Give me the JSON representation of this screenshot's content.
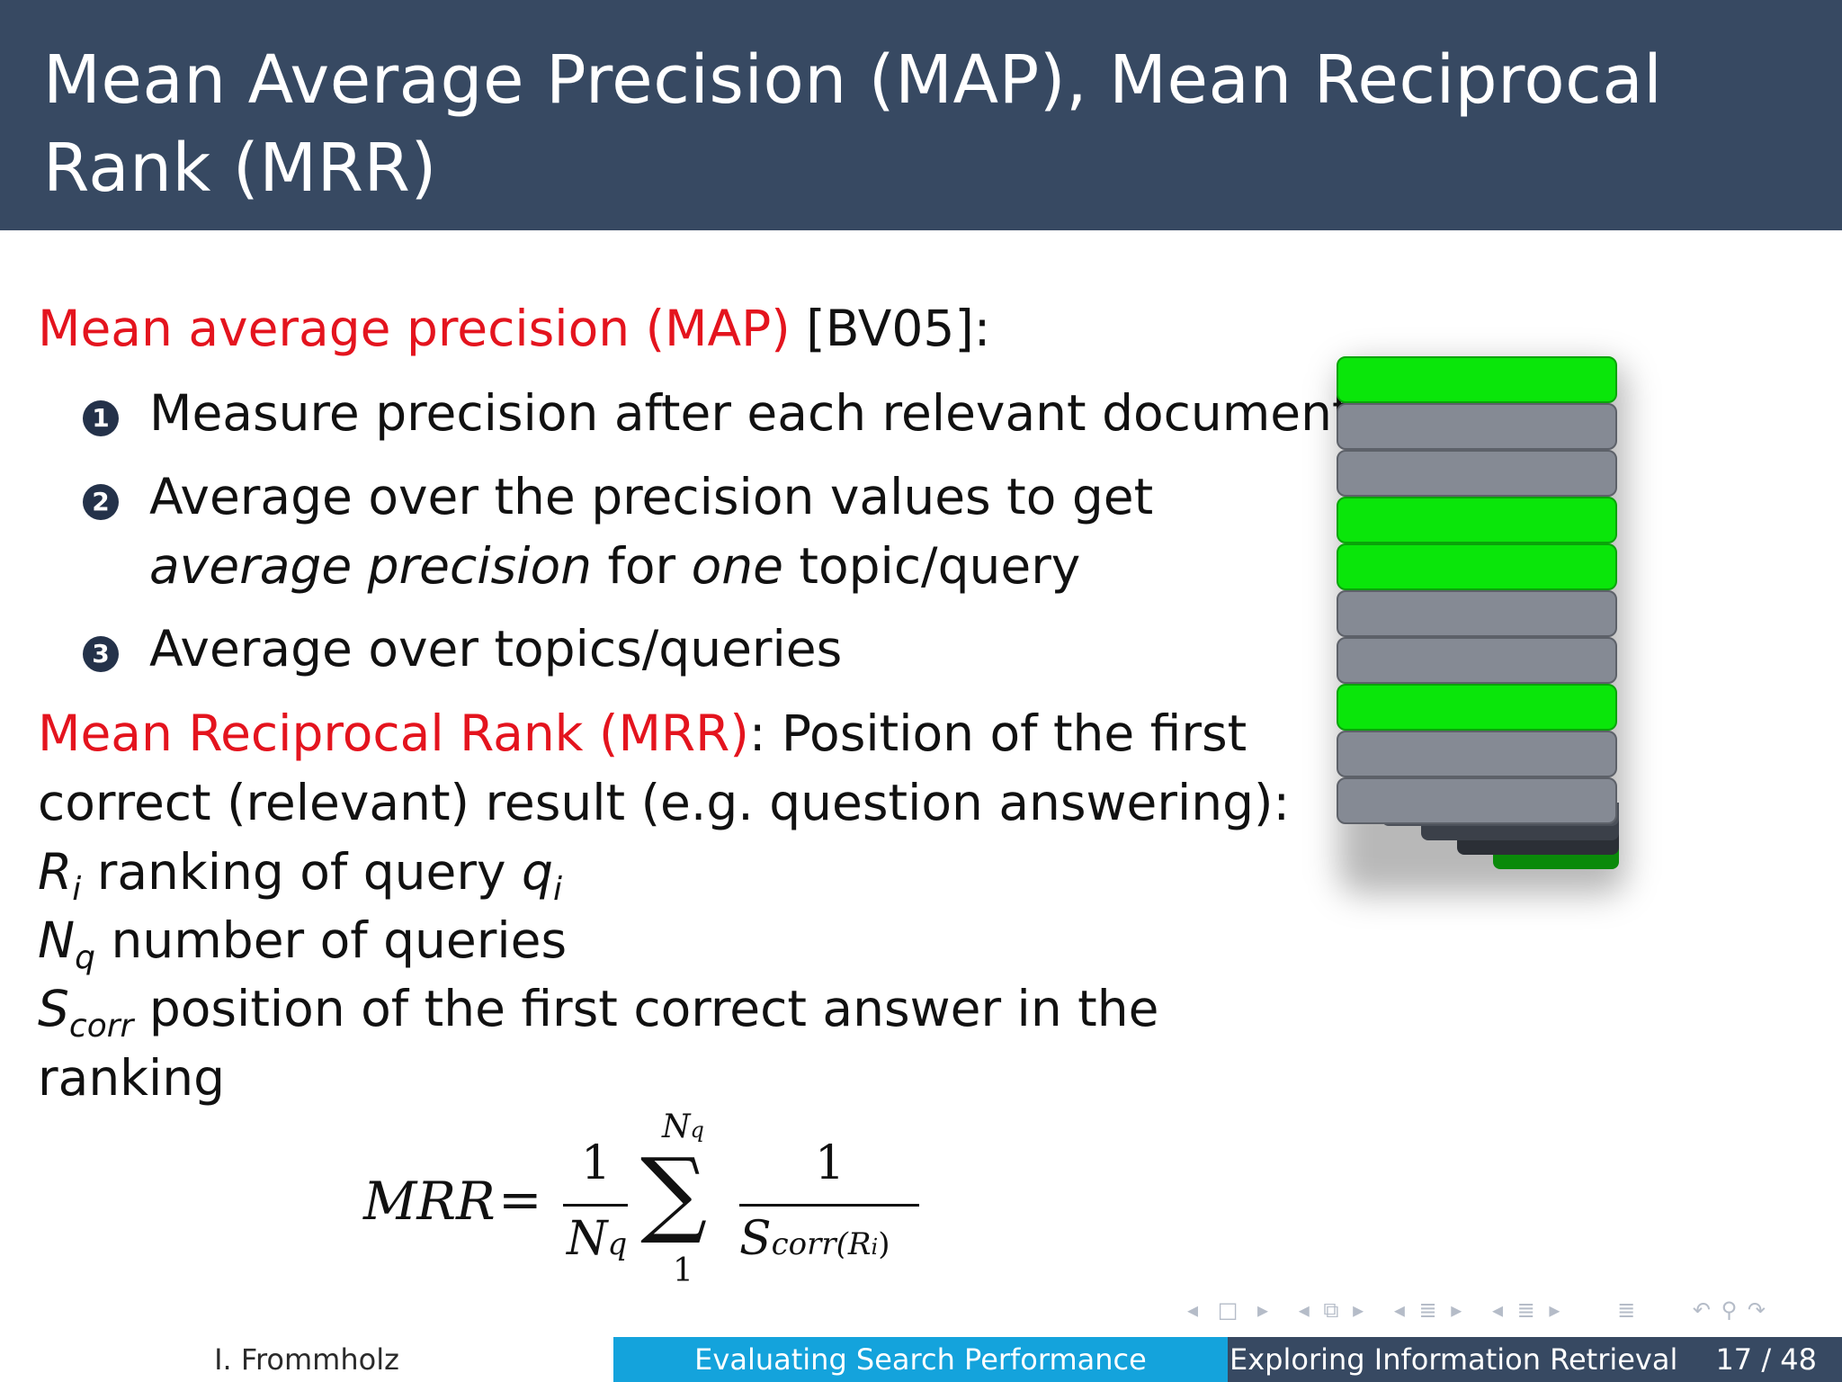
{
  "slide": {
    "title": "Mean Average Precision (MAP), Mean Reciprocal Rank (MRR)"
  },
  "map_section": {
    "heading": "Mean average precision (MAP)",
    "citation": " [BV05]:",
    "steps": [
      {
        "number": "1",
        "text": "Measure precision after each relevant document"
      },
      {
        "number": "2",
        "line1": "Average over the precision values to get",
        "line2_italic_a": "average precision",
        "line2_mid": " for ",
        "line2_italic_b": "one",
        "line2_end": " topic/query"
      },
      {
        "number": "3",
        "text": "Average over topics/queries"
      }
    ]
  },
  "mrr_section": {
    "heading": "Mean Reciprocal Rank (MRR)",
    "intro_rest": ": Position of the first",
    "intro_line2": "correct (relevant) result (e.g. question answering):",
    "defs": [
      {
        "sym": "R",
        "sub": "i",
        "text": " ranking of query ",
        "sym2": "q",
        "sub2": "i"
      },
      {
        "sym": "N",
        "sub": "q",
        "text": " number of queries"
      },
      {
        "sym": "S",
        "sub": "corr",
        "text": " position of the first correct answer in the",
        "cont": "ranking"
      }
    ]
  },
  "formula": {
    "lhs": "MRR",
    "eq": "=",
    "frac1_num": "1",
    "frac1_den": "N",
    "frac1_den_sub": "q",
    "sum_upper": "N",
    "sum_upper_sub": "q",
    "sum_symbol": "∑",
    "sum_lower": "1",
    "frac2_num": "1",
    "frac2_den": "S",
    "frac2_den_sub": "corr(R",
    "frac2_den_sub_i": "i",
    "frac2_den_sub_close": ")"
  },
  "ranking_stack": {
    "colors": {
      "relevant": "#0ae60a",
      "nonrelevant": "#858a94"
    },
    "items": [
      "relevant",
      "nonrelevant",
      "nonrelevant",
      "relevant",
      "relevant",
      "nonrelevant",
      "nonrelevant",
      "relevant",
      "nonrelevant",
      "nonrelevant"
    ]
  },
  "footer": {
    "author": "I. Frommholz",
    "section": "Evaluating Search Performance",
    "course": "Exploring Information Retrieval",
    "page": "17 / 48",
    "nav_icons": [
      "nav-prev-frame-icon",
      "nav-frame-icon",
      "nav-next-frame-icon",
      "nav-prev-subsection-icon",
      "nav-subsection-icon",
      "nav-next-subsection-icon",
      "nav-prev-section-icon",
      "nav-section-icon",
      "nav-next-section-icon",
      "nav-prev-part-icon",
      "nav-part-icon",
      "nav-next-part-icon",
      "nav-toc-icon",
      "nav-back-icon",
      "nav-search-icon",
      "nav-forward-icon"
    ]
  },
  "colors": {
    "title_bar": "#374962",
    "heading_red": "#e4141e",
    "footer_blue": "#14a3dc"
  }
}
